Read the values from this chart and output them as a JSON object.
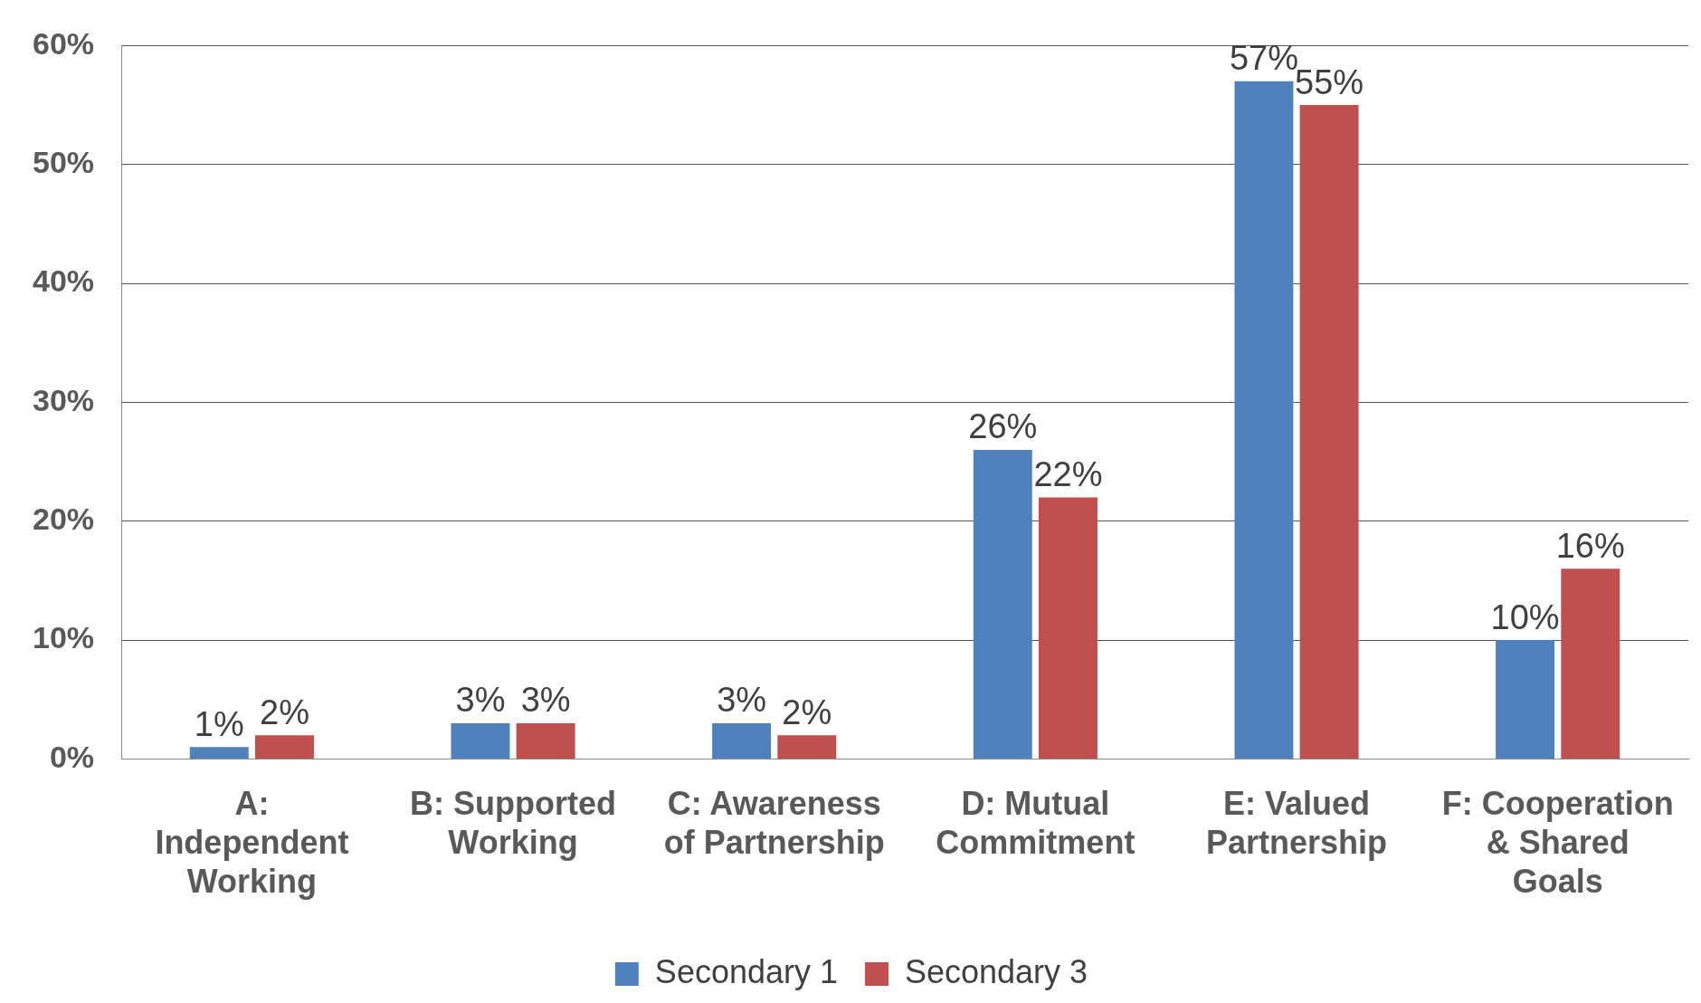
{
  "chart_data": {
    "type": "bar",
    "categories": [
      "A: Independent Working",
      "B: Supported Working",
      "C: Awareness of Partnership",
      "D: Mutual Commitment",
      "E: Valued Partnership",
      "F: Cooperation & Shared Goals"
    ],
    "series": [
      {
        "name": "Secondary 1",
        "color": "#4f81bd",
        "values": [
          1,
          3,
          3,
          26,
          57,
          10
        ],
        "value_labels": [
          "1%",
          "3%",
          "3%",
          "26%",
          "57%",
          "10%"
        ]
      },
      {
        "name": "Secondary 3",
        "color": "#c0504d",
        "values": [
          2,
          3,
          2,
          22,
          55,
          16
        ],
        "value_labels": [
          "2%",
          "3%",
          "2%",
          "22%",
          "55%",
          "16%"
        ]
      }
    ],
    "ylim": [
      0,
      60
    ],
    "yticks": [
      {
        "value": 0,
        "label": "0%"
      },
      {
        "value": 10,
        "label": "10%"
      },
      {
        "value": 20,
        "label": "20%"
      },
      {
        "value": 30,
        "label": "30%"
      },
      {
        "value": 40,
        "label": "40%"
      },
      {
        "value": 50,
        "label": "50%"
      },
      {
        "value": 60,
        "label": "60%"
      }
    ],
    "grid": "y",
    "legend": "bottom"
  }
}
